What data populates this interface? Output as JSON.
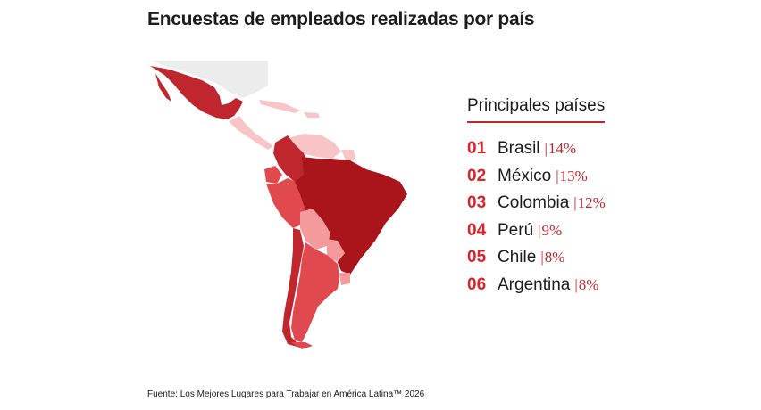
{
  "header": {
    "title": "Encuestas de empleados realizadas por país"
  },
  "panel": {
    "title": "Principales países",
    "separator": "|",
    "items": [
      {
        "rank": "01",
        "country": "Brasil",
        "percent": "14%"
      },
      {
        "rank": "02",
        "country": "México",
        "percent": "13%"
      },
      {
        "rank": "03",
        "country": "Colombia",
        "percent": "12%"
      },
      {
        "rank": "04",
        "country": "Perú",
        "percent": "9%"
      },
      {
        "rank": "05",
        "country": "Chile",
        "percent": "8%"
      },
      {
        "rank": "06",
        "country": "Argentina",
        "percent": "8%"
      }
    ]
  },
  "footer": {
    "source": "Fuente: Los Mejores Lugares para Trabajar en América Latina™ 2026"
  },
  "colors": {
    "darkest": "#a9151b",
    "dark": "#c0262d",
    "medium": "#e04a4f",
    "light": "#f59a9c",
    "lightest": "#f8c4c5",
    "unfilled": "#ececec",
    "accent": "#d9242b"
  }
}
